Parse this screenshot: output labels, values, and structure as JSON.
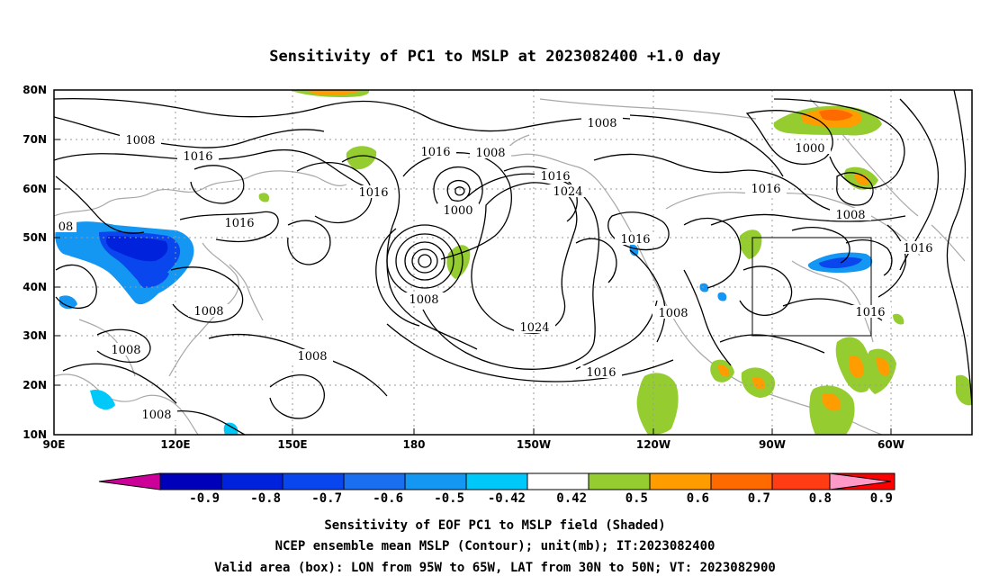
{
  "title": "Sensitivity of PC1 to MSLP at 2023082400 +1.0 day",
  "map": {
    "lon_ticks": [
      "90E",
      "120E",
      "150E",
      "180",
      "150W",
      "120W",
      "90W",
      "60W"
    ],
    "lat_ticks": [
      "80N",
      "70N",
      "60N",
      "50N",
      "40N",
      "30N",
      "20N",
      "10N"
    ],
    "valid_box": {
      "lon_west": "95W",
      "lon_east": "65W",
      "lat_south": "30N",
      "lat_north": "50N"
    },
    "contour_labels": [
      "1008",
      "1016",
      "1016",
      "1008",
      "1016",
      "1008",
      "1016",
      "1016",
      "1024",
      "1000",
      "1008",
      "1008",
      "1008",
      "1024",
      "1008",
      "1016",
      "1008",
      "1008",
      "1016",
      "1016",
      "1016",
      "1000",
      "1008",
      "08"
    ]
  },
  "colorbar": {
    "labels": [
      "-0.9",
      "-0.8",
      "-0.7",
      "-0.6",
      "-0.5",
      "-0.42",
      "0.42",
      "0.5",
      "0.6",
      "0.7",
      "0.8",
      "0.9"
    ],
    "colors": [
      "#0000bb",
      "#0022dd",
      "#0a46ee",
      "#1a6ef0",
      "#1497f2",
      "#00c8f8",
      "#ffffff",
      "#95cc2f",
      "#ff9c00",
      "#ff6a00",
      "#ff3c14",
      "#ff0000"
    ],
    "low_extension_color": "#cc0099",
    "high_extension_color": "#ff9ac8"
  },
  "footer": {
    "line1": "Sensitivity of EOF PC1 to MSLP field (Shaded)",
    "line2": "NCEP ensemble mean MSLP (Contour); unit(mb); IT:2023082400",
    "line3": "Valid area (box): LON from 95W to 65W, LAT from 30N to 50N; VT: 2023082900"
  }
}
